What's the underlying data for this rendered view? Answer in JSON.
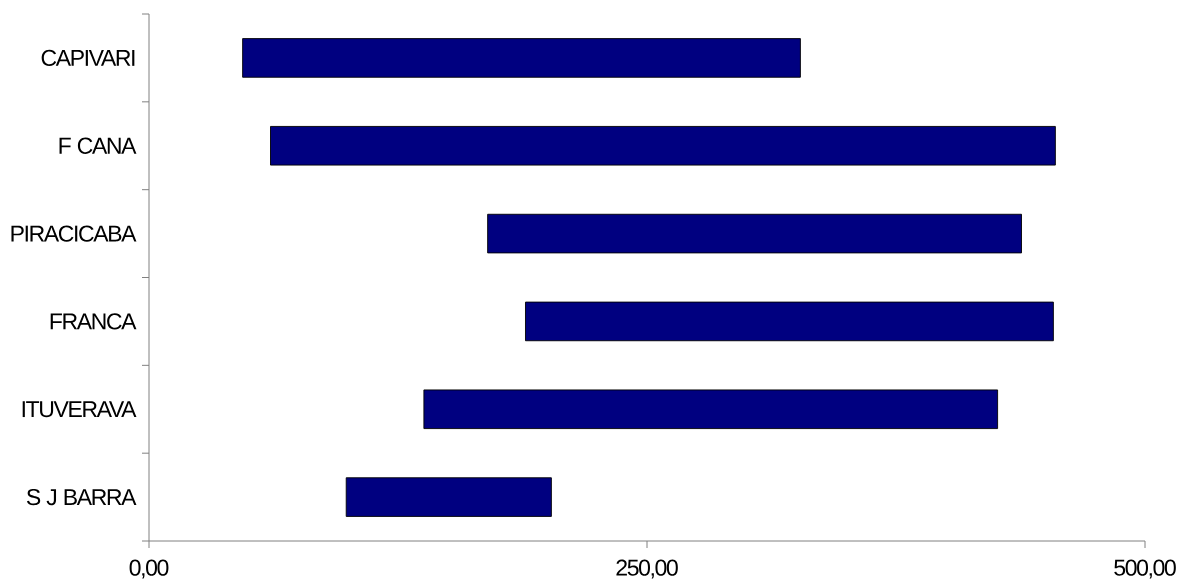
{
  "chart_data": {
    "type": "bar",
    "orientation": "horizontal",
    "categories": [
      "CAPIVARI",
      "F CANA",
      "PIRACICABA",
      "FRANCA",
      "ITUVERAVA",
      "S J BARRA"
    ],
    "base": [
      47,
      61,
      170,
      189,
      138,
      99
    ],
    "values": [
      280,
      394,
      268,
      265,
      288,
      103
    ],
    "color": "#000080",
    "xlim": [
      0,
      500
    ],
    "xticks": [
      {
        "value": 0,
        "label": "0,00"
      },
      {
        "value": 250,
        "label": "250,00"
      },
      {
        "value": 500,
        "label": "500,00"
      }
    ]
  }
}
